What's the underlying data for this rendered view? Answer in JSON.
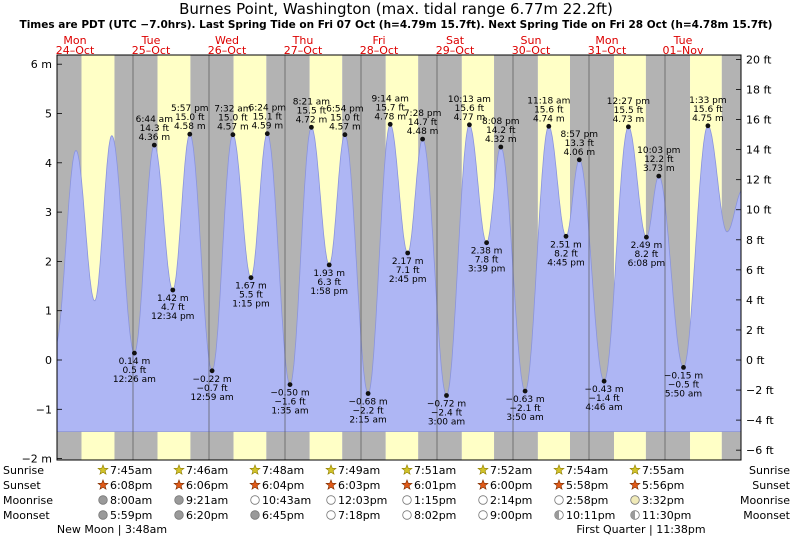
{
  "chart_data": {
    "type": "area",
    "title": "Burnes Point, Washington (max. tidal range 6.77m 22.2ft)",
    "subtitle": "Times are PDT (UTC −7.0hrs). Last Spring Tide on Fri 07 Oct (h=4.79m 15.7ft). Next Spring Tide on Fri 28 Oct (h=4.78m 15.7ft)",
    "x_days": [
      {
        "dow": "Mon",
        "date": "24–Oct"
      },
      {
        "dow": "Tue",
        "date": "25–Oct"
      },
      {
        "dow": "Wed",
        "date": "26–Oct"
      },
      {
        "dow": "Thu",
        "date": "27–Oct"
      },
      {
        "dow": "Fri",
        "date": "28–Oct"
      },
      {
        "dow": "Sat",
        "date": "29–Oct"
      },
      {
        "dow": "Sun",
        "date": "30–Oct"
      },
      {
        "dow": "Mon",
        "date": "31–Oct"
      },
      {
        "dow": "Tue",
        "date": "01–Nov"
      }
    ],
    "y_axis_left": {
      "unit": "m",
      "ticks": [
        6,
        5,
        4,
        3,
        2,
        1,
        0,
        -1,
        -2
      ],
      "labels": [
        "6 m",
        "5",
        "4",
        "3",
        "2",
        "1",
        "0",
        "−1",
        "−2 m"
      ]
    },
    "y_axis_right": {
      "unit": "ft",
      "ticks": [
        20,
        18,
        16,
        14,
        12,
        10,
        8,
        6,
        4,
        2,
        0,
        -2,
        -4,
        -6
      ],
      "labels": [
        "20 ft",
        "18 ft",
        "16 ft",
        "14 ft",
        "12 ft",
        "10 ft",
        "8 ft",
        "6 ft",
        "4 ft",
        "2 ft",
        "0 ft",
        "−2 ft",
        "−4 ft",
        "−6 ft"
      ]
    },
    "ylim_m": [
      -2,
      6.2
    ],
    "fill_base_m": -1.45,
    "tide_events": [
      {
        "day": 1,
        "type": "low",
        "time": "12:26 am",
        "m": "0.14 m",
        "ft": "0.5 ft",
        "height_m": 0.14
      },
      {
        "day": 1,
        "type": "high",
        "time": "6:44 am",
        "m": "4.36 m",
        "ft": "14.3 ft",
        "height_m": 4.36
      },
      {
        "day": 1,
        "type": "low",
        "time": "12:34 pm",
        "m": "1.42 m",
        "ft": "4.7 ft",
        "height_m": 1.42
      },
      {
        "day": 1,
        "type": "high",
        "time": "5:57 pm",
        "m": "4.58 m",
        "ft": "15.0 ft",
        "height_m": 4.58
      },
      {
        "day": 2,
        "type": "low",
        "time": "12:59 am",
        "m": "−0.22 m",
        "ft": "−0.7 ft",
        "height_m": -0.22
      },
      {
        "day": 2,
        "type": "high",
        "time": "7:32 am",
        "m": "4.57 m",
        "ft": "15.0 ft",
        "height_m": 4.57
      },
      {
        "day": 2,
        "type": "low",
        "time": "1:15 pm",
        "m": "1.67 m",
        "ft": "5.5 ft",
        "height_m": 1.67
      },
      {
        "day": 2,
        "type": "high",
        "time": "6:24 pm",
        "m": "4.59 m",
        "ft": "15.1 ft",
        "height_m": 4.59
      },
      {
        "day": 3,
        "type": "low",
        "time": "1:35 am",
        "m": "−0.50 m",
        "ft": "−1.6 ft",
        "height_m": -0.5
      },
      {
        "day": 3,
        "type": "high",
        "time": "8:21 am",
        "m": "4.72 m",
        "ft": "15.5 ft",
        "height_m": 4.72
      },
      {
        "day": 3,
        "type": "low",
        "time": "1:58 pm",
        "m": "1.93 m",
        "ft": "6.3 ft",
        "height_m": 1.93
      },
      {
        "day": 3,
        "type": "high",
        "time": "6:54 pm",
        "m": "4.57 m",
        "ft": "15.0 ft",
        "height_m": 4.57
      },
      {
        "day": 4,
        "type": "low",
        "time": "2:15 am",
        "m": "−0.68 m",
        "ft": "−2.2 ft",
        "height_m": -0.68
      },
      {
        "day": 4,
        "type": "high",
        "time": "9:14 am",
        "m": "4.78 m",
        "ft": "15.7 ft",
        "height_m": 4.78
      },
      {
        "day": 4,
        "type": "low",
        "time": "2:45 pm",
        "m": "2.17 m",
        "ft": "7.1 ft",
        "height_m": 2.17
      },
      {
        "day": 4,
        "type": "high",
        "time": "7:28 pm",
        "m": "4.48 m",
        "ft": "14.7 ft",
        "height_m": 4.48
      },
      {
        "day": 5,
        "type": "low",
        "time": "3:00 am",
        "m": "−0.72 m",
        "ft": "−2.4 ft",
        "height_m": -0.72
      },
      {
        "day": 5,
        "type": "high",
        "time": "10:13 am",
        "m": "4.77 m",
        "ft": "15.6 ft",
        "height_m": 4.77
      },
      {
        "day": 5,
        "type": "low",
        "time": "3:39 pm",
        "m": "2.38 m",
        "ft": "7.8 ft",
        "height_m": 2.38
      },
      {
        "day": 5,
        "type": "high",
        "time": "8:08 pm",
        "m": "4.32 m",
        "ft": "14.2 ft",
        "height_m": 4.32
      },
      {
        "day": 6,
        "type": "low",
        "time": "3:50 am",
        "m": "−0.63 m",
        "ft": "−2.1 ft",
        "height_m": -0.63
      },
      {
        "day": 6,
        "type": "high",
        "time": "11:18 am",
        "m": "4.74 m",
        "ft": "15.6 ft",
        "height_m": 4.74
      },
      {
        "day": 6,
        "type": "low",
        "time": "4:45 pm",
        "m": "2.51 m",
        "ft": "8.2 ft",
        "height_m": 2.51
      },
      {
        "day": 6,
        "type": "high",
        "time": "8:57 pm",
        "m": "4.06 m",
        "ft": "13.3 ft",
        "height_m": 4.06
      },
      {
        "day": 7,
        "type": "low",
        "time": "4:46 am",
        "m": "−0.43 m",
        "ft": "−1.4 ft",
        "height_m": -0.43
      },
      {
        "day": 7,
        "type": "high",
        "time": "12:27 pm",
        "m": "4.73 m",
        "ft": "15.5 ft",
        "height_m": 4.73
      },
      {
        "day": 7,
        "type": "low",
        "time": "6:08 pm",
        "m": "2.49 m",
        "ft": "8.2 ft",
        "height_m": 2.49
      },
      {
        "day": 7,
        "type": "high",
        "time": "10:03 pm",
        "m": "3.73 m",
        "ft": "12.2 ft",
        "height_m": 3.73
      },
      {
        "day": 8,
        "type": "low",
        "time": "5:50 am",
        "m": "−0.15 m",
        "ft": "−0.5 ft",
        "height_m": -0.15
      },
      {
        "day": 8,
        "type": "high",
        "time": "1:33 pm",
        "m": "4.75 m",
        "ft": "15.6 ft",
        "height_m": 4.75
      }
    ],
    "curve_est_points": [
      {
        "t_h": -0.5,
        "height_m": 0.3
      },
      {
        "t_h": 6.0,
        "height_m": 4.25
      },
      {
        "t_h": 11.9,
        "height_m": 1.2
      },
      {
        "t_h": 17.3,
        "height_m": 4.55
      },
      {
        "t_h": 211.6,
        "height_m": 2.6
      },
      {
        "t_h": 216.5,
        "height_m": 3.45
      }
    ]
  },
  "colors": {
    "day_band": "#ffffc6",
    "night_band": "#b3b3b3",
    "tide_fill": "#aeb6f4",
    "tide_stroke": "#8a94dd",
    "day_label": "#dd0000",
    "sunrise_icon": "#d2c328",
    "sunset_icon": "#e05a18",
    "moon_dark": "#9a9a9a",
    "moon_light": "#ffffff",
    "moon_yellow": "#f0eab8"
  },
  "astro_rows": [
    {
      "key": "sunrise",
      "label": "Sunrise",
      "entries": [
        {
          "time": "7:45am",
          "variant": "sun"
        },
        {
          "time": "7:46am",
          "variant": "sun"
        },
        {
          "time": "7:48am",
          "variant": "sun"
        },
        {
          "time": "7:49am",
          "variant": "sun"
        },
        {
          "time": "7:51am",
          "variant": "sun"
        },
        {
          "time": "7:52am",
          "variant": "sun"
        },
        {
          "time": "7:54am",
          "variant": "sun"
        },
        {
          "time": "7:55am",
          "variant": "sun"
        }
      ]
    },
    {
      "key": "sunset",
      "label": "Sunset",
      "entries": [
        {
          "time": "6:08pm",
          "variant": "sunset"
        },
        {
          "time": "6:06pm",
          "variant": "sunset"
        },
        {
          "time": "6:04pm",
          "variant": "sunset"
        },
        {
          "time": "6:03pm",
          "variant": "sunset"
        },
        {
          "time": "6:01pm",
          "variant": "sunset"
        },
        {
          "time": "6:00pm",
          "variant": "sunset"
        },
        {
          "time": "5:58pm",
          "variant": "sunset"
        },
        {
          "time": "5:56pm",
          "variant": "sunset"
        }
      ]
    },
    {
      "key": "moonrise",
      "label": "Moonrise",
      "entries": [
        {
          "time": "8:00am",
          "variant": "moon-dark"
        },
        {
          "time": "9:21am",
          "variant": "moon-dark"
        },
        {
          "time": "10:43am",
          "variant": "moon-light"
        },
        {
          "time": "12:03pm",
          "variant": "moon-light"
        },
        {
          "time": "1:15pm",
          "variant": "moon-light"
        },
        {
          "time": "2:14pm",
          "variant": "moon-light"
        },
        {
          "time": "2:58pm",
          "variant": "moon-light"
        },
        {
          "time": "3:32pm",
          "variant": "moon-yellow"
        }
      ]
    },
    {
      "key": "moonset",
      "label": "Moonset",
      "entries": [
        {
          "time": "5:59pm",
          "variant": "moon-dark"
        },
        {
          "time": "6:20pm",
          "variant": "moon-dark"
        },
        {
          "time": "6:45pm",
          "variant": "moon-dark"
        },
        {
          "time": "7:18pm",
          "variant": "moon-light"
        },
        {
          "time": "8:02pm",
          "variant": "moon-light"
        },
        {
          "time": "9:00pm",
          "variant": "moon-light"
        },
        {
          "time": "10:11pm",
          "variant": "moon-half"
        },
        {
          "time": "11:30pm",
          "variant": "moon-half"
        }
      ]
    }
  ],
  "moon_phases": {
    "left": "New Moon | 3:48am",
    "right": "First Quarter | 11:38pm"
  }
}
